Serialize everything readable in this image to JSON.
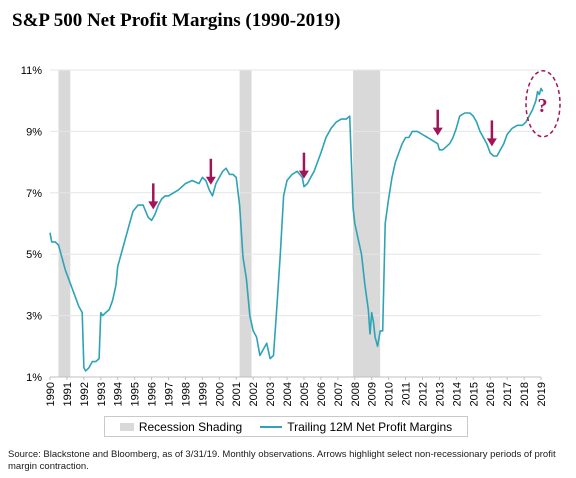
{
  "title": "S&P 500 Net Profit Margins (1990-2019)",
  "source": "Source: Blackstone and Bloomberg, as of 3/31/19. Monthly observations. Arrows highlight select non-recessionary periods of profit margin contraction.",
  "colors": {
    "line": "#2ea3b7",
    "recession": "#d9d9d9",
    "arrow": "#a0155a",
    "question": "#a0155a",
    "grid": "#e6e6e6"
  },
  "chart_data": {
    "type": "line",
    "title": "S&P 500 Net Profit Margins (1990-2019)",
    "xlabel": "",
    "ylabel": "",
    "xlim": [
      1990,
      2019
    ],
    "ylim": [
      1,
      11
    ],
    "yticks": [
      "1%",
      "3%",
      "5%",
      "7%",
      "9%",
      "11%"
    ],
    "ytick_values": [
      1,
      3,
      5,
      7,
      9,
      11
    ],
    "xticks": [
      "1990",
      "1991",
      "1992",
      "1993",
      "1994",
      "1995",
      "1996",
      "1997",
      "1998",
      "1999",
      "2000",
      "2001",
      "2002",
      "2003",
      "2004",
      "2005",
      "2006",
      "2007",
      "2008",
      "2009",
      "2010",
      "2011",
      "2012",
      "2013",
      "2014",
      "2015",
      "2016",
      "2017",
      "2018",
      "2019"
    ],
    "grid": true,
    "legend_placement": "bottom",
    "legend": [
      "Recession Shading",
      "Trailing 12M Net Profit Margins"
    ],
    "recessions": [
      [
        1990.5,
        1991.2
      ],
      [
        2001.2,
        2001.9
      ],
      [
        2007.9,
        2009.5
      ]
    ],
    "series": [
      {
        "name": "Trailing 12M Net Profit Margins",
        "x": [
          1990.0,
          1990.1,
          1990.3,
          1990.5,
          1990.7,
          1990.9,
          1991.1,
          1991.3,
          1991.5,
          1991.7,
          1991.9,
          1992.0,
          1992.1,
          1992.3,
          1992.5,
          1992.7,
          1992.9,
          1993.0,
          1993.1,
          1993.3,
          1993.5,
          1993.7,
          1993.9,
          1994.0,
          1994.3,
          1994.6,
          1994.9,
          1995.2,
          1995.5,
          1995.8,
          1996.0,
          1996.2,
          1996.4,
          1996.6,
          1996.8,
          1997.0,
          1997.3,
          1997.6,
          1998.0,
          1998.4,
          1998.8,
          1999.0,
          1999.2,
          1999.4,
          1999.6,
          1999.8,
          2000.0,
          2000.2,
          2000.4,
          2000.6,
          2000.8,
          2001.0,
          2001.2,
          2001.4,
          2001.6,
          2001.8,
          2002.0,
          2002.2,
          2002.4,
          2002.6,
          2002.8,
          2003.0,
          2003.2,
          2003.4,
          2003.6,
          2003.8,
          2004.0,
          2004.3,
          2004.6,
          2004.9,
          2005.0,
          2005.2,
          2005.4,
          2005.6,
          2005.8,
          2006.0,
          2006.3,
          2006.6,
          2006.9,
          2007.2,
          2007.5,
          2007.7,
          2007.9,
          2008.0,
          2008.2,
          2008.4,
          2008.6,
          2008.8,
          2008.9,
          2009.0,
          2009.1,
          2009.2,
          2009.35,
          2009.5,
          2009.65,
          2009.8,
          2009.9,
          2010.0,
          2010.2,
          2010.4,
          2010.6,
          2010.8,
          2011.0,
          2011.2,
          2011.4,
          2011.7,
          2012.0,
          2012.3,
          2012.6,
          2012.9,
          2013.0,
          2013.2,
          2013.4,
          2013.6,
          2013.8,
          2014.0,
          2014.2,
          2014.5,
          2014.8,
          2015.0,
          2015.2,
          2015.4,
          2015.6,
          2015.8,
          2016.0,
          2016.2,
          2016.4,
          2016.6,
          2016.8,
          2017.0,
          2017.3,
          2017.6,
          2017.9,
          2018.1,
          2018.3,
          2018.5,
          2018.7,
          2018.8,
          2018.9,
          2019.0,
          2019.1
        ],
        "values": [
          5.7,
          5.4,
          5.4,
          5.3,
          4.9,
          4.5,
          4.2,
          3.9,
          3.6,
          3.3,
          3.1,
          1.3,
          1.2,
          1.3,
          1.5,
          1.5,
          1.6,
          3.1,
          3.0,
          3.1,
          3.2,
          3.5,
          4.0,
          4.6,
          5.2,
          5.8,
          6.4,
          6.6,
          6.6,
          6.2,
          6.1,
          6.3,
          6.6,
          6.8,
          6.9,
          6.9,
          7.0,
          7.1,
          7.3,
          7.4,
          7.3,
          7.5,
          7.4,
          7.1,
          6.9,
          7.3,
          7.5,
          7.7,
          7.8,
          7.6,
          7.6,
          7.5,
          6.6,
          4.9,
          4.2,
          3.0,
          2.5,
          2.3,
          1.7,
          1.9,
          2.1,
          1.6,
          1.7,
          3.3,
          5.0,
          6.9,
          7.4,
          7.6,
          7.7,
          7.5,
          7.2,
          7.3,
          7.5,
          7.7,
          8.0,
          8.3,
          8.8,
          9.1,
          9.3,
          9.4,
          9.4,
          9.5,
          6.5,
          6.0,
          5.5,
          5.0,
          4.0,
          3.2,
          2.4,
          3.1,
          2.8,
          2.3,
          2.0,
          2.5,
          2.5,
          6.0,
          6.4,
          6.8,
          7.5,
          8.0,
          8.3,
          8.6,
          8.8,
          8.8,
          9.0,
          9.0,
          8.9,
          8.8,
          8.7,
          8.6,
          8.4,
          8.4,
          8.5,
          8.6,
          8.8,
          9.1,
          9.5,
          9.6,
          9.6,
          9.5,
          9.3,
          9.0,
          8.8,
          8.6,
          8.3,
          8.2,
          8.2,
          8.4,
          8.6,
          8.9,
          9.1,
          9.2,
          9.2,
          9.3,
          9.5,
          9.7,
          10.0,
          10.3,
          10.2,
          10.4,
          10.3
        ]
      }
    ],
    "annotations": {
      "arrows_x": [
        1996.1,
        1999.5,
        2005.0,
        2012.9,
        2016.1
      ],
      "question_mark": "?"
    }
  }
}
